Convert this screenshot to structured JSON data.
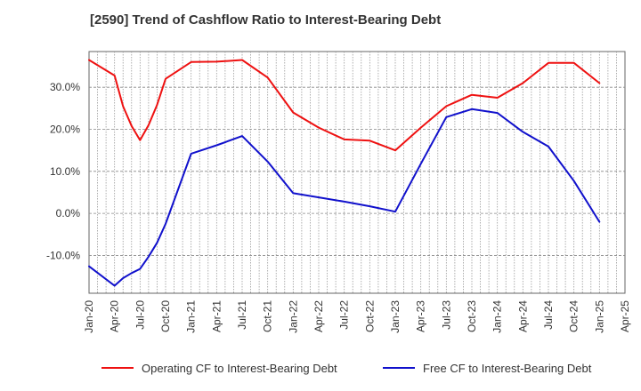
{
  "chart_data": {
    "type": "line",
    "title": "[2590]  Trend of Cashflow Ratio to Interest-Bearing Debt",
    "xlabel": "",
    "ylabel": "",
    "x_ticks": [
      "Jan-20",
      "Apr-20",
      "Jul-20",
      "Oct-20",
      "Jan-21",
      "Apr-21",
      "Jul-21",
      "Oct-21",
      "Jan-22",
      "Apr-22",
      "Jul-22",
      "Oct-22",
      "Jan-23",
      "Apr-23",
      "Jul-23",
      "Oct-23",
      "Jan-24",
      "Apr-24",
      "Jul-24",
      "Oct-24",
      "Jan-25",
      "Apr-25"
    ],
    "y_ticks": [
      "-10.0%",
      "0.0%",
      "10.0%",
      "20.0%",
      "30.0%"
    ],
    "y_tick_values": [
      -10,
      0,
      10,
      20,
      30
    ],
    "ylim": [
      -19,
      38.5
    ],
    "grid": true,
    "legend_position": "bottom",
    "series": [
      {
        "name": "Operating CF to Interest-Bearing Debt",
        "color": "#ee1111",
        "x": [
          "Jan-20",
          "Apr-20",
          "May-20",
          "Jun-20",
          "Jul-20",
          "Aug-20",
          "Sep-20",
          "Oct-20",
          "Jan-21",
          "Apr-21",
          "Jul-21",
          "Oct-21",
          "Jan-22",
          "Apr-22",
          "Jul-22",
          "Oct-22",
          "Jan-23",
          "Apr-23",
          "Jul-23",
          "Oct-23",
          "Jan-24",
          "Apr-24",
          "Jul-24",
          "Oct-24",
          "Jan-25"
        ],
        "values": [
          36.5,
          32.8,
          25.5,
          20.8,
          17.4,
          21.0,
          25.8,
          32.0,
          36.0,
          36.1,
          36.5,
          32.3,
          24.0,
          20.4,
          17.6,
          17.3,
          15.0,
          20.4,
          25.5,
          28.2,
          27.5,
          31.0,
          35.8,
          35.8,
          31.0
        ]
      },
      {
        "name": "Free CF to Interest-Bearing Debt",
        "color": "#1111cc",
        "x": [
          "Jan-20",
          "Apr-20",
          "May-20",
          "Jun-20",
          "Jul-20",
          "Aug-20",
          "Sep-20",
          "Oct-20",
          "Jan-21",
          "Apr-21",
          "Jul-21",
          "Oct-21",
          "Jan-22",
          "Apr-22",
          "Jul-22",
          "Oct-22",
          "Jan-23",
          "Apr-23",
          "Jul-23",
          "Oct-23",
          "Jan-24",
          "Apr-24",
          "Jul-24",
          "Oct-24",
          "Jan-25"
        ],
        "values": [
          -12.6,
          -17.2,
          -15.4,
          -14.2,
          -13.2,
          -10.3,
          -7.0,
          -2.5,
          14.2,
          16.2,
          18.4,
          12.3,
          4.8,
          3.8,
          2.8,
          1.7,
          0.4,
          11.8,
          22.9,
          24.8,
          23.9,
          19.4,
          15.9,
          7.7,
          -2.0
        ]
      }
    ]
  }
}
